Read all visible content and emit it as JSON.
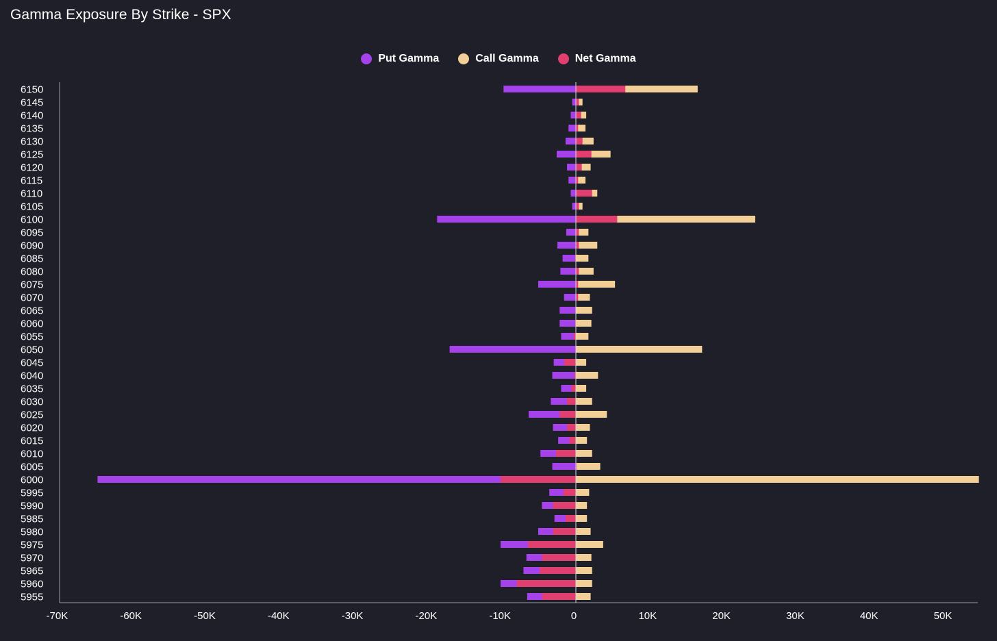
{
  "chart_data": {
    "type": "bar",
    "orientation": "horizontal",
    "title": "Gamma Exposure By Strike - SPX",
    "legend_position": "top-center",
    "xlim": [
      -70000,
      55000
    ],
    "x_ticks": [
      -70000,
      -60000,
      -50000,
      -40000,
      -30000,
      -20000,
      -10000,
      0,
      10000,
      20000,
      30000,
      40000,
      50000
    ],
    "x_tick_labels": [
      "-70K",
      "-60K",
      "-50K",
      "-40K",
      "-30K",
      "-20K",
      "-10K",
      "0",
      "10K",
      "20K",
      "30K",
      "40K",
      "50K"
    ],
    "categories": [
      "6150",
      "6145",
      "6140",
      "6135",
      "6130",
      "6125",
      "6120",
      "6115",
      "6110",
      "6105",
      "6100",
      "6095",
      "6090",
      "6085",
      "6080",
      "6075",
      "6070",
      "6065",
      "6060",
      "6055",
      "6050",
      "6045",
      "6040",
      "6035",
      "6030",
      "6025",
      "6020",
      "6015",
      "6010",
      "6005",
      "6000",
      "5995",
      "5990",
      "5985",
      "5980",
      "5975",
      "5970",
      "5965",
      "5960",
      "5955"
    ],
    "series": [
      {
        "name": "Put Gamma",
        "color": "#a542ec",
        "values": [
          -9800,
          -500,
          -700,
          -1000,
          -1400,
          -2600,
          -1200,
          -1000,
          -700,
          -500,
          -18800,
          -1300,
          -2500,
          -1800,
          -2100,
          -5100,
          -1600,
          -2200,
          -2200,
          -2000,
          -17100,
          -3000,
          -3200,
          -2000,
          -3400,
          -6400,
          -3100,
          -2400,
          -4800,
          -3200,
          -64800,
          -3600,
          -4600,
          -2900,
          -5100,
          -10200,
          -6700,
          -7100,
          -10200,
          -6600
        ]
      },
      {
        "name": "Call Gamma",
        "color": "#f2cf96",
        "values": [
          16500,
          900,
          1400,
          1300,
          2400,
          4700,
          2000,
          1300,
          2900,
          900,
          24300,
          1700,
          2900,
          1700,
          2400,
          5300,
          1900,
          2200,
          2100,
          1700,
          17100,
          1400,
          3000,
          1400,
          2200,
          4200,
          1900,
          1500,
          2200,
          3300,
          54600,
          1800,
          1500,
          1500,
          2000,
          3700,
          2100,
          2200,
          2200,
          2000
        ]
      },
      {
        "name": "Net Gamma",
        "color": "#e03f70",
        "values": [
          6700,
          400,
          700,
          300,
          900,
          2100,
          800,
          300,
          2200,
          400,
          5600,
          400,
          400,
          -100,
          400,
          300,
          300,
          0,
          -100,
          -300,
          0,
          -1600,
          -200,
          -600,
          -1200,
          -2200,
          -1200,
          -900,
          -2700,
          100,
          -10200,
          -1700,
          -3100,
          -1400,
          -3100,
          -6500,
          -4600,
          -4900,
          -8000,
          -4600
        ]
      }
    ]
  }
}
